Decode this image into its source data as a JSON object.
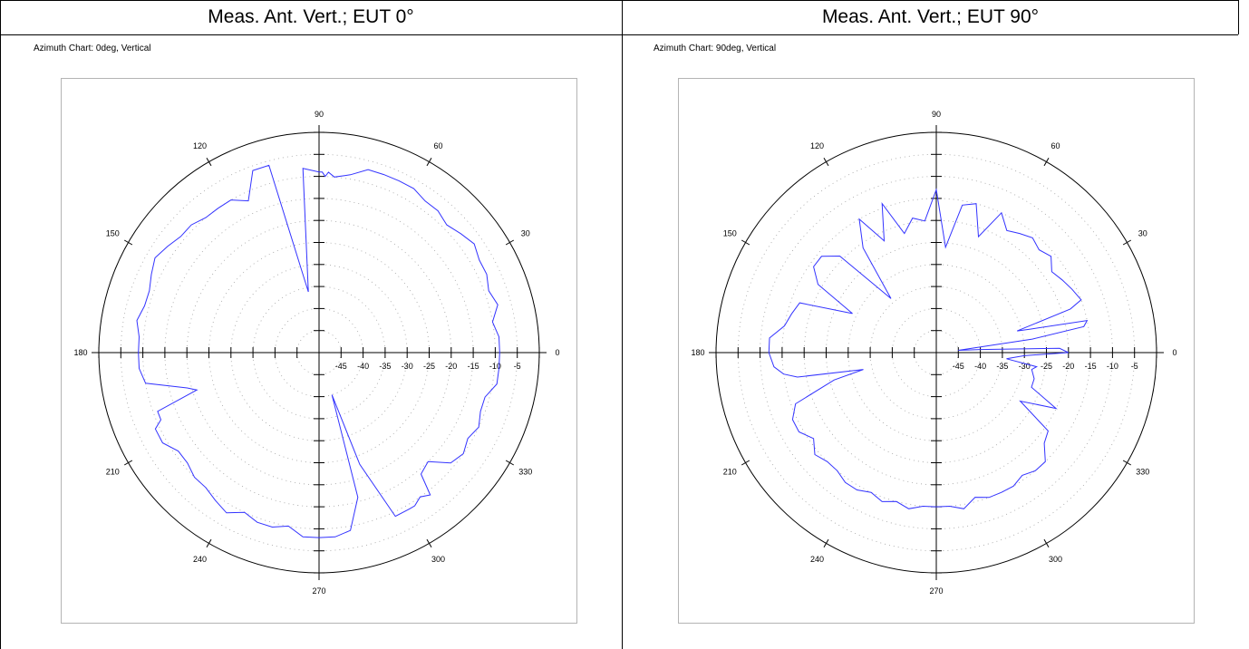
{
  "columns": [
    {
      "header": "Meas. Ant. Vert.; EUT 0°",
      "chart_title": "Azimuth Chart: 0deg, Vertical"
    },
    {
      "header": "Meas. Ant. Vert.; EUT 90°",
      "chart_title": "Azimuth Chart: 90deg, Vertical"
    }
  ],
  "chart_data": [
    {
      "type": "polar-line",
      "title": "Azimuth Chart: 0deg, Vertical",
      "angle_unit": "deg",
      "angle_labels": [
        "0",
        "30",
        "60",
        "90",
        "120",
        "150",
        "180",
        "210",
        "240",
        "270",
        "300",
        "330"
      ],
      "radial_labels": [
        "-45",
        "-40",
        "-35",
        "-30",
        "-25",
        "-20",
        "-15",
        "-10",
        "-5"
      ],
      "radial_range": [
        -50,
        0
      ],
      "grid": true,
      "series_color": "#3333ff",
      "series": [
        {
          "angles": [
            0,
            5,
            10,
            15,
            20,
            25,
            30,
            35,
            40,
            45,
            50,
            55,
            60,
            65,
            70,
            75,
            80,
            85,
            87,
            88,
            89,
            90,
            95,
            100,
            105,
            110,
            115,
            120,
            125,
            130,
            135,
            140,
            145,
            150,
            155,
            160,
            165,
            170,
            175,
            180,
            185,
            190,
            195,
            197,
            200,
            203,
            205,
            210,
            215,
            220,
            225,
            230,
            235,
            240,
            245,
            250,
            255,
            260,
            265,
            270,
            275,
            280,
            285,
            287,
            290,
            295,
            300,
            302,
            305,
            308,
            310,
            315,
            320,
            325,
            330,
            335,
            340,
            345,
            350,
            355,
            360
          ],
          "values": [
            -9,
            -9,
            -10,
            -8,
            -9,
            -8,
            -8,
            -7,
            -8,
            -9,
            -8,
            -8,
            -7,
            -7,
            -7,
            -7,
            -9,
            -10,
            -9,
            -10,
            -9,
            -9,
            -8,
            -36,
            -6,
            -6,
            -12,
            -10,
            -10,
            -10,
            -9,
            -9,
            -8,
            -7,
            -8,
            -9,
            -9,
            -8,
            -9,
            -9,
            -9,
            -10,
            -19,
            -21,
            -11,
            -11,
            -9,
            -9,
            -11,
            -11,
            -10,
            -10,
            -9,
            -8,
            -10,
            -9,
            -9,
            -10,
            -8,
            -8,
            -8,
            -9,
            -16,
            -40,
            -23,
            -9,
            -9,
            -9,
            -10,
            -9,
            -14,
            -15,
            -11,
            -10,
            -11,
            -10,
            -11,
            -11,
            -9,
            -9,
            -9
          ]
        }
      ]
    },
    {
      "type": "polar-line",
      "title": "Azimuth Chart: 90deg, Vertical",
      "angle_unit": "deg",
      "angle_labels": [
        "0",
        "30",
        "60",
        "90",
        "120",
        "150",
        "180",
        "210",
        "240",
        "270",
        "300",
        "330"
      ],
      "radial_labels": [
        "-45",
        "-40",
        "-35",
        "-30",
        "-25",
        "-20",
        "-15",
        "-10",
        "-5"
      ],
      "radial_range": [
        -50,
        0
      ],
      "grid": true,
      "series_color": "#3333ff",
      "series": [
        {
          "angles": [
            0,
            2,
            4,
            6,
            8,
            10,
            12,
            14,
            15,
            18,
            20,
            25,
            30,
            35,
            40,
            45,
            50,
            55,
            60,
            65,
            70,
            75,
            80,
            85,
            90,
            95,
            100,
            105,
            110,
            115,
            120,
            125,
            130,
            135,
            140,
            145,
            150,
            155,
            160,
            165,
            170,
            175,
            180,
            185,
            188,
            190,
            193,
            195,
            200,
            205,
            210,
            215,
            220,
            225,
            230,
            235,
            240,
            245,
            250,
            255,
            260,
            265,
            270,
            275,
            280,
            285,
            290,
            295,
            300,
            305,
            310,
            315,
            320,
            325,
            330,
            335,
            340,
            345,
            350,
            352,
            355,
            358,
            360
          ],
          "values": [
            -20,
            -22,
            -40,
            -45,
            -28,
            -16,
            -15,
            -28,
            -31,
            -18,
            -15,
            -16,
            -17,
            -18,
            -16,
            -17,
            -16,
            -17,
            -18,
            -15,
            -22,
            -15,
            -16,
            -26,
            -13,
            -20,
            -19,
            -22,
            -14,
            -22,
            -15,
            -21,
            -34,
            -19,
            -16,
            -16,
            -19,
            -29,
            -17,
            -16,
            -15,
            -12,
            -12,
            -13,
            -15,
            -18,
            -33,
            -26,
            -16,
            -14,
            -14,
            -16,
            -14,
            -15,
            -15,
            -14,
            -14,
            -15,
            -14,
            -15,
            -14,
            -15,
            -15,
            -15,
            -14,
            -16,
            -15,
            -15,
            -15,
            -16,
            -15,
            -15,
            -18,
            -19,
            -28,
            -20,
            -27,
            -27,
            -28,
            -27,
            -34,
            -30,
            -20
          ]
        }
      ]
    }
  ]
}
